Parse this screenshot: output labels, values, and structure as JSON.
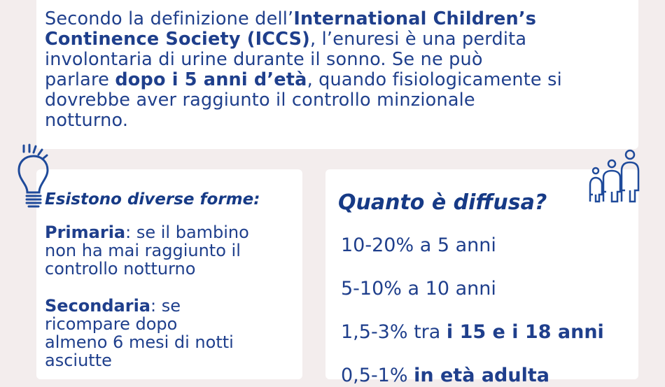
{
  "intro": {
    "lines": [
      [
        {
          "t": "Secondo la definizione dell’"
        },
        {
          "t": "International Children’s",
          "b": true
        }
      ],
      [
        {
          "t": "Continence Society (ICCS)",
          "b": true
        },
        {
          "t": ", l’enuresi è una perdita"
        }
      ],
      [
        {
          "t": "involontaria di urine durante il sonno. Se ne può"
        }
      ],
      [
        {
          "t": "parlare "
        },
        {
          "t": "dopo i 5 anni d’età",
          "b": true
        },
        {
          "t": ", quando fisiologicamente si"
        }
      ],
      [
        {
          "t": "dovrebbe aver raggiunto il controllo minzionale"
        }
      ],
      [
        {
          "t": "notturno."
        }
      ]
    ]
  },
  "forms": {
    "icon": "lightbulb-icon",
    "heading": "Esistono diverse forme:",
    "primary": {
      "term": "Primaria",
      "lines": [
        ": se il bambino",
        "non ha mai raggiunto il",
        "controllo notturno"
      ]
    },
    "secondary": {
      "term": "Secondaria",
      "lines": [
        ": se",
        "ricompare dopo",
        "almeno 6 mesi di notti",
        "asciutte"
      ]
    }
  },
  "prevalence": {
    "icon": "family-icon",
    "heading": "Quanto è diffusa?",
    "items": [
      [
        {
          "t": "10-20% a 5 anni"
        }
      ],
      [
        {
          "t": "5-10% a 10 anni"
        }
      ],
      [
        {
          "t": "1,5-3% tra "
        },
        {
          "t": "i 15 e i 18 anni",
          "b": true
        }
      ],
      [
        {
          "t": "0,5-1% "
        },
        {
          "t": "in età adulta",
          "b": true
        }
      ]
    ]
  },
  "colors": {
    "text": "#1f3f8c",
    "background": "#f3eded",
    "card": "#ffffff"
  }
}
